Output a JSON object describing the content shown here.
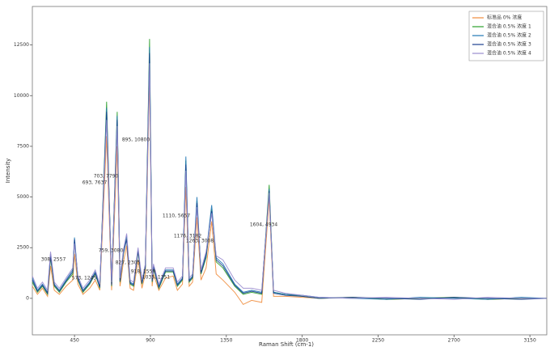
{
  "chart_data": {
    "type": "line",
    "xlabel": "Raman Shift (cm-1)",
    "ylabel": "Intensity",
    "xlim": [
      200,
      3250
    ],
    "ylim": [
      -1800,
      14400
    ],
    "xticks": [
      450,
      900,
      1350,
      1800,
      2250,
      2700,
      3150
    ],
    "yticks": [
      0,
      2500,
      5000,
      7500,
      10000,
      12500
    ],
    "legend": "upper right",
    "x": [
      200,
      230,
      260,
      290,
      308,
      330,
      360,
      400,
      440,
      450,
      470,
      500,
      540,
      573,
      600,
      640,
      670,
      703,
      720,
      740,
      759,
      780,
      800,
      827,
      850,
      870,
      895,
      910,
      918,
      950,
      990,
      1035,
      1060,
      1090,
      1110,
      1130,
      1150,
      1176,
      1200,
      1230,
      1263,
      1290,
      1330,
      1400,
      1450,
      1500,
      1560,
      1604,
      1630,
      1700,
      1800,
      1900,
      2100,
      2300,
      2500,
      2700,
      2900,
      3100,
      3250
    ],
    "series": [
      {
        "name": "标准品 0% 浓度",
        "color": "#f08c3c",
        "values": [
          600,
          200,
          500,
          100,
          1600,
          400,
          200,
          600,
          900,
          2200,
          700,
          200,
          500,
          900,
          400,
          8000,
          400,
          7500,
          600,
          1800,
          2600,
          500,
          400,
          1900,
          500,
          1200,
          11000,
          600,
          1200,
          400,
          1000,
          1100,
          400,
          700,
          5500,
          600,
          800,
          4000,
          900,
          1500,
          3800,
          1200,
          900,
          300,
          -300,
          -100,
          -200,
          4900,
          100,
          100,
          50,
          0,
          50,
          -50,
          0,
          50,
          -50,
          0,
          0
        ]
      },
      {
        "name": "混合油 0.5% 浓度 1",
        "color": "#2ca02c",
        "values": [
          800,
          300,
          600,
          200,
          2000,
          600,
          300,
          800,
          1200,
          2800,
          900,
          300,
          700,
          1200,
          500,
          9700,
          600,
          9200,
          800,
          2200,
          3000,
          700,
          600,
          2300,
          700,
          1500,
          12800,
          800,
          1500,
          500,
          1300,
          1300,
          600,
          900,
          6800,
          800,
          1000,
          4800,
          1200,
          2000,
          4400,
          1800,
          1500,
          600,
          200,
          300,
          200,
          5600,
          300,
          200,
          100,
          0,
          50,
          -50,
          0,
          50,
          -50,
          0,
          0
        ]
      },
      {
        "name": "混合油 0.5% 浓度 2",
        "color": "#1f77b4",
        "values": [
          1000,
          400,
          700,
          300,
          2200,
          700,
          400,
          900,
          1400,
          3000,
          1000,
          400,
          800,
          1300,
          600,
          9400,
          700,
          9000,
          900,
          2300,
          3100,
          800,
          700,
          2400,
          800,
          1600,
          12400,
          900,
          1600,
          600,
          1400,
          1400,
          700,
          1000,
          7000,
          900,
          1100,
          5000,
          1300,
          2200,
          4600,
          2000,
          1700,
          700,
          300,
          400,
          300,
          5400,
          300,
          200,
          150,
          50,
          0,
          -50,
          50,
          0,
          -50,
          50,
          0
        ]
      },
      {
        "name": "混合油 0.5% 浓度 3",
        "color": "#1a3f8f",
        "values": [
          900,
          350,
          650,
          250,
          2100,
          650,
          350,
          850,
          1300,
          2900,
          950,
          350,
          750,
          1250,
          550,
          9200,
          650,
          8800,
          850,
          2250,
          2900,
          750,
          650,
          2350,
          750,
          1550,
          12100,
          850,
          1550,
          550,
          1350,
          1350,
          650,
          950,
          6600,
          850,
          1050,
          4700,
          1250,
          2100,
          4300,
          1900,
          1600,
          650,
          250,
          350,
          250,
          5300,
          250,
          150,
          100,
          0,
          50,
          0,
          -50,
          50,
          0,
          -50,
          0
        ]
      },
      {
        "name": "混合油 0.5% 浓度 4",
        "color": "#9a8ccf",
        "values": [
          1100,
          500,
          800,
          400,
          2300,
          800,
          500,
          1000,
          1500,
          2700,
          1100,
          500,
          900,
          1400,
          700,
          8800,
          800,
          8500,
          1000,
          2400,
          3200,
          900,
          800,
          2500,
          900,
          1700,
          11600,
          1000,
          1700,
          700,
          1500,
          1500,
          800,
          1100,
          6300,
          1000,
          1200,
          4500,
          1400,
          2300,
          4200,
          2100,
          1900,
          900,
          500,
          500,
          400,
          5200,
          400,
          250,
          150,
          50,
          0,
          50,
          0,
          -50,
          50,
          0,
          0
        ]
      }
    ],
    "annotations": [
      "308, 2557",
      "573, 1245",
      "703, 7790",
      "693, 7637",
      "759, 3080",
      "827, 2305",
      "895, 10800",
      "918, 1559",
      "1035, 1351",
      "1110, 5657",
      "1176, 3182",
      "1263, 3008",
      "1604, 4934"
    ]
  }
}
